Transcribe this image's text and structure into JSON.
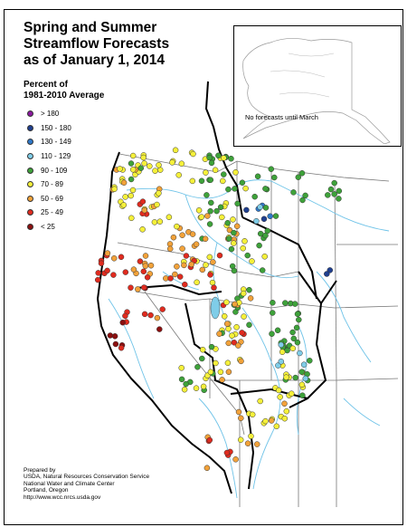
{
  "title_lines": [
    "Spring and Summer",
    "Streamflow Forecasts",
    "as of January 1, 2014"
  ],
  "legend": {
    "title_lines": [
      "Percent of",
      "1981-2010 Average"
    ],
    "items": [
      {
        "label": "> 180",
        "color": "#8b1a9e"
      },
      {
        "label": "150 - 180",
        "color": "#1f3f8f"
      },
      {
        "label": "130 - 149",
        "color": "#2f78c8"
      },
      {
        "label": "110 - 129",
        "color": "#7fcde8"
      },
      {
        "label": "90 - 109",
        "color": "#3ea23a"
      },
      {
        "label": "70 - 89",
        "color": "#f5f03a"
      },
      {
        "label": "50 - 69",
        "color": "#f2a23a"
      },
      {
        "label": "25 - 49",
        "color": "#e02b1f"
      },
      {
        "label": "< 25",
        "color": "#8b1010"
      }
    ]
  },
  "inset": {
    "note": "No forecasts until March"
  },
  "credits": [
    "Prepared by",
    "USDA, Natural Resources Conservation Service",
    "National Water and Climate Center",
    "Portland, Oregon",
    "http://www.wcc.nrcs.usda.gov"
  ],
  "colors": {
    "river": "#6fc3e8",
    "state_line": "#777777",
    "basin_line": "#000000"
  }
}
